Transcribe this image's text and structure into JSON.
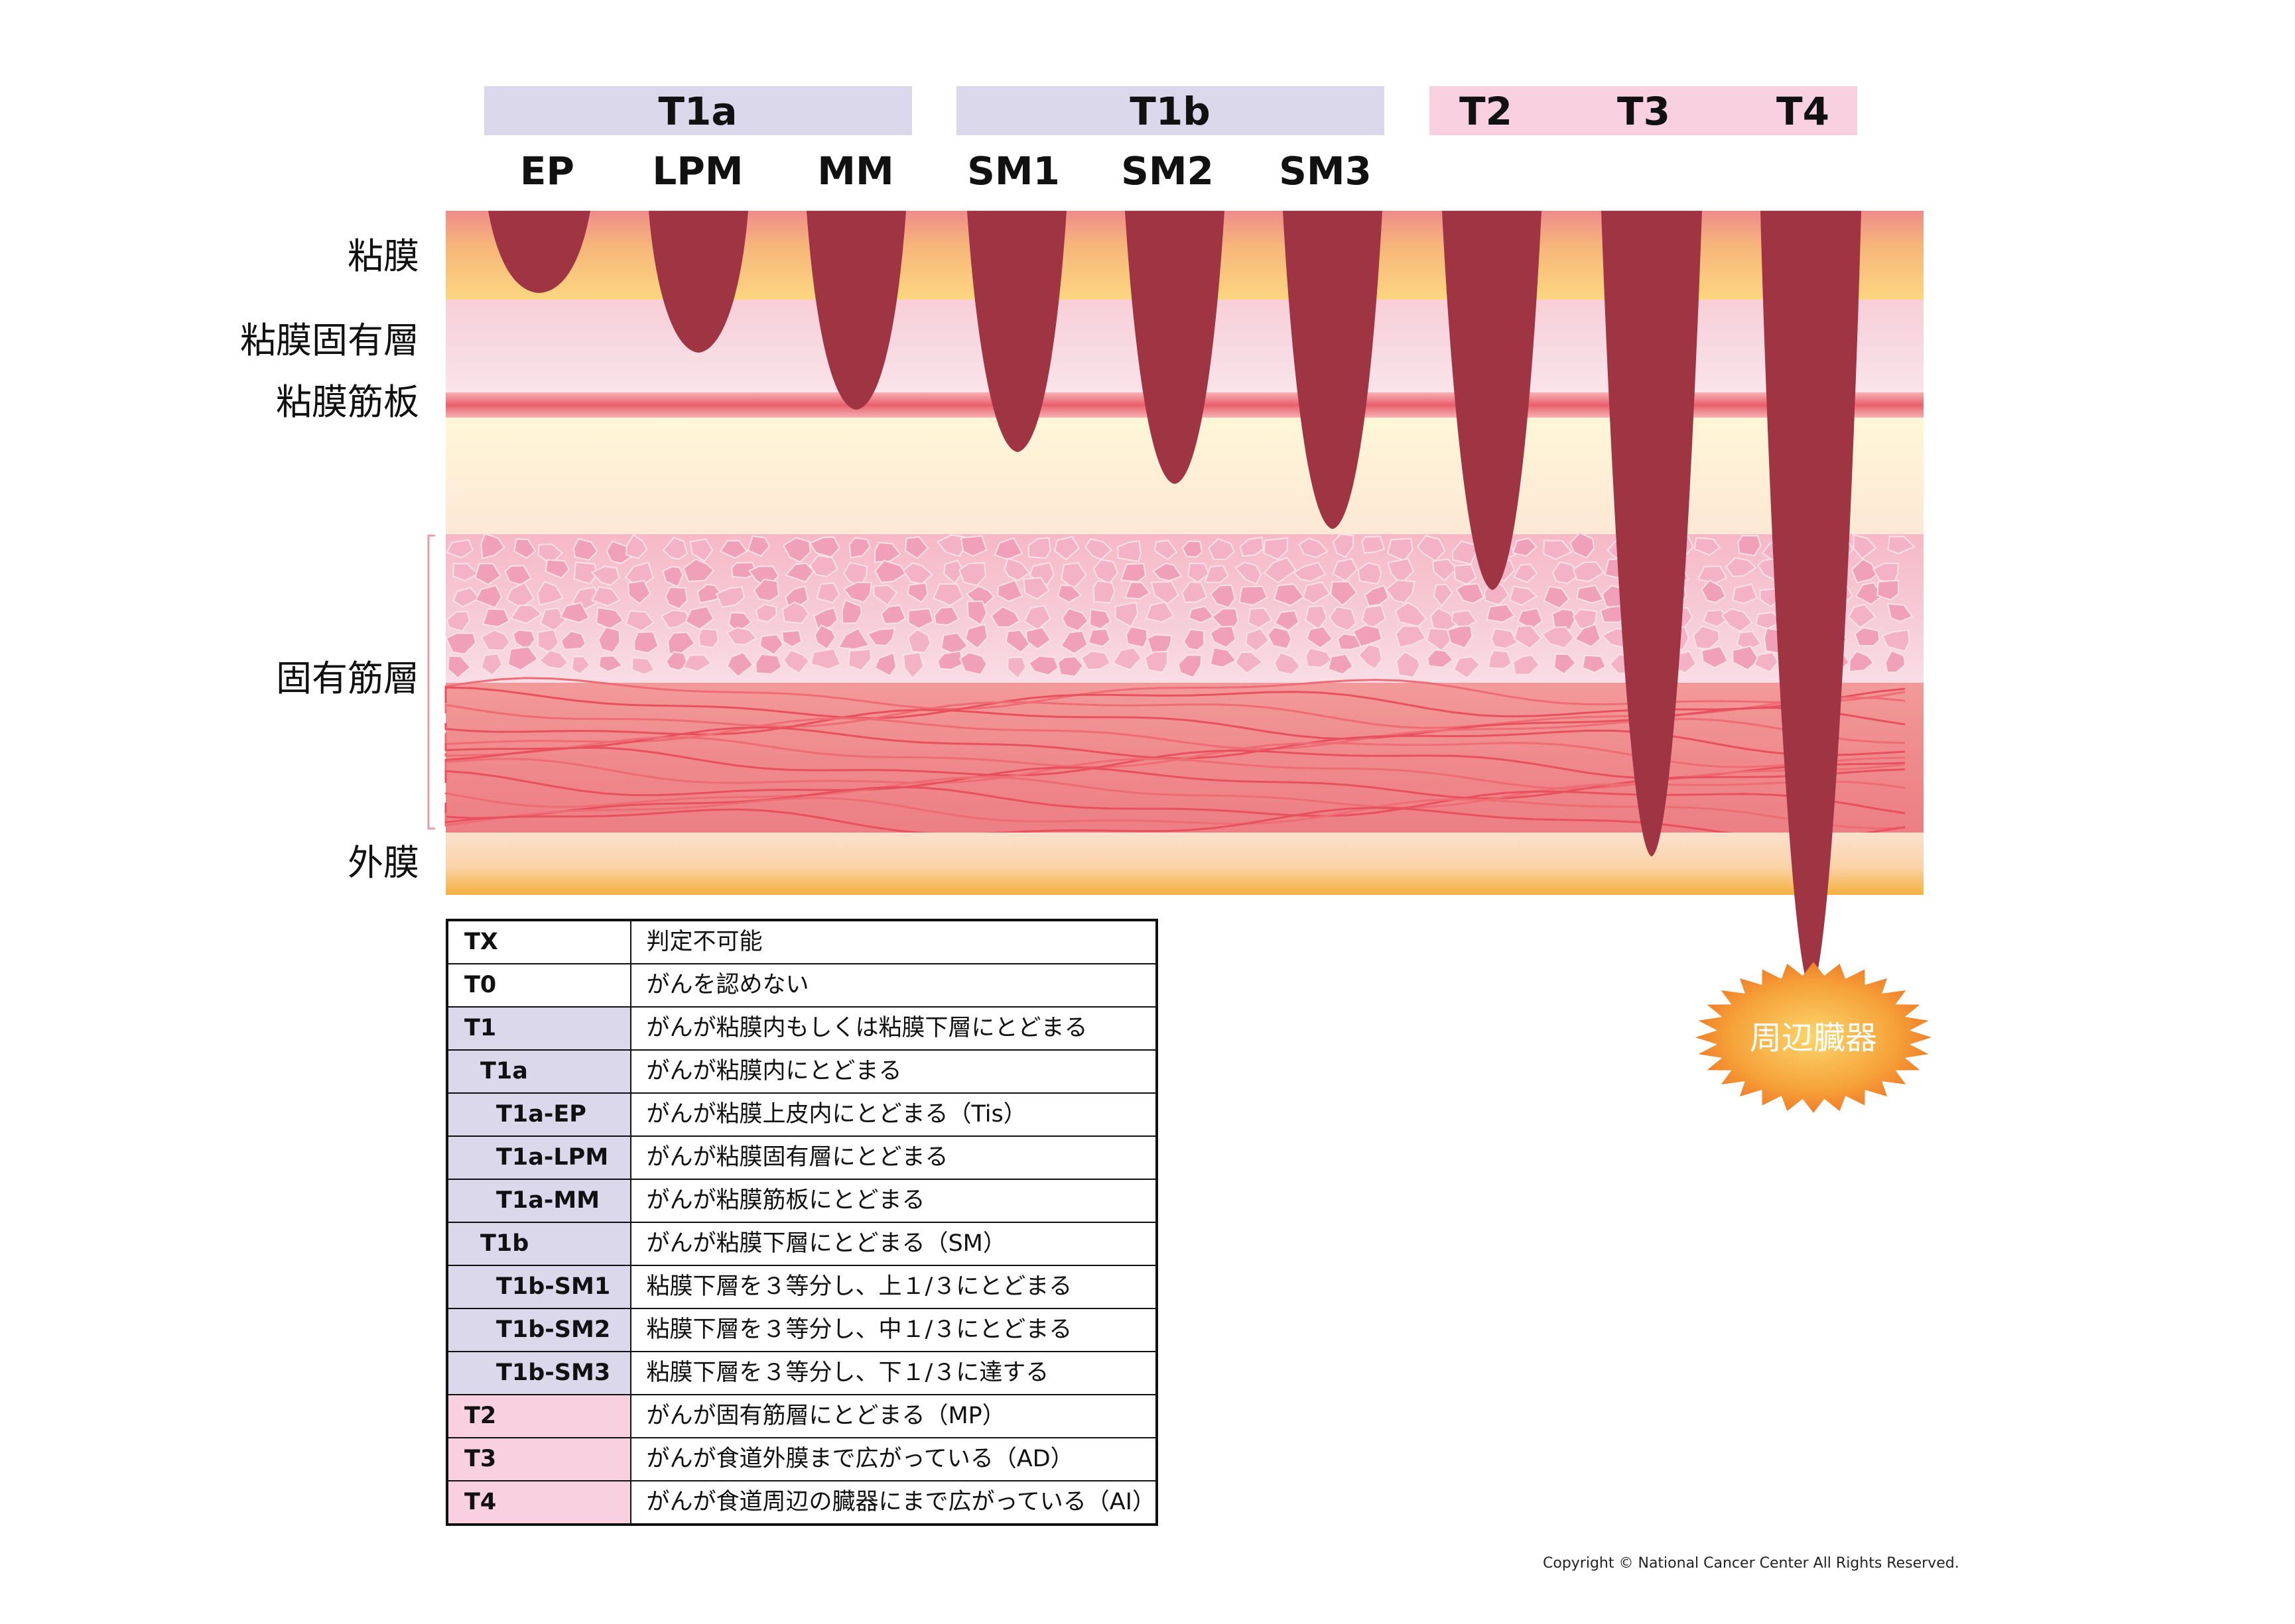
{
  "headers": {
    "t1a": "T1a",
    "t1b": "T1b",
    "t2": "T2",
    "t3": "T3",
    "t4": "T4",
    "colors": {
      "t1_band": "#dcd8ec",
      "t234_band": "#f8d0e0"
    }
  },
  "subheaders": [
    "EP",
    "LPM",
    "MM",
    "SM1",
    "SM2",
    "SM3"
  ],
  "layers": {
    "mucosa": "粘膜",
    "lamina_propria": "粘膜固有層",
    "muscularis_mucosae": "粘膜筋板",
    "muscularis_propria": "固有筋層",
    "adventitia": "外膜"
  },
  "organ_label": "周辺臓器",
  "table": [
    {
      "code": "TX",
      "desc": "判定不可能",
      "group": "none",
      "indent": 0
    },
    {
      "code": "T0",
      "desc": "がんを認めない",
      "group": "none",
      "indent": 0
    },
    {
      "code": "T1",
      "desc": "がんが粘膜内もしくは粘膜下層にとどまる",
      "group": "t1",
      "indent": 0
    },
    {
      "code": "T1a",
      "desc": "がんが粘膜内にとどまる",
      "group": "t1",
      "indent": 1
    },
    {
      "code": "T1a-EP",
      "desc": "がんが粘膜上皮内にとどまる（Tis）",
      "group": "t1",
      "indent": 2
    },
    {
      "code": "T1a-LPM",
      "desc": "がんが粘膜固有層にとどまる",
      "group": "t1",
      "indent": 2
    },
    {
      "code": "T1a-MM",
      "desc": "がんが粘膜筋板にとどまる",
      "group": "t1",
      "indent": 2
    },
    {
      "code": "T1b",
      "desc": "がんが粘膜下層にとどまる（SM）",
      "group": "t1",
      "indent": 1
    },
    {
      "code": "T1b-SM1",
      "desc": "粘膜下層を３等分し、上１/３にとどまる",
      "group": "t1",
      "indent": 2
    },
    {
      "code": "T1b-SM2",
      "desc": "粘膜下層を３等分し、中１/３にとどまる",
      "group": "t1",
      "indent": 2
    },
    {
      "code": "T1b-SM3",
      "desc": "粘膜下層を３等分し、下１/３に達する",
      "group": "t1",
      "indent": 2
    },
    {
      "code": "T2",
      "desc": "がんが固有筋層にとどまる（MP）",
      "group": "t234",
      "indent": 0
    },
    {
      "code": "T3",
      "desc": "がんが食道外膜まで広がっている（AD）",
      "group": "t234",
      "indent": 0
    },
    {
      "code": "T4",
      "desc": "がんが食道周辺の臓器にまで広がっている（AI）",
      "group": "t234",
      "indent": 0
    }
  ],
  "copyright": "Copyright © National Cancer Center All Rights Reserved."
}
